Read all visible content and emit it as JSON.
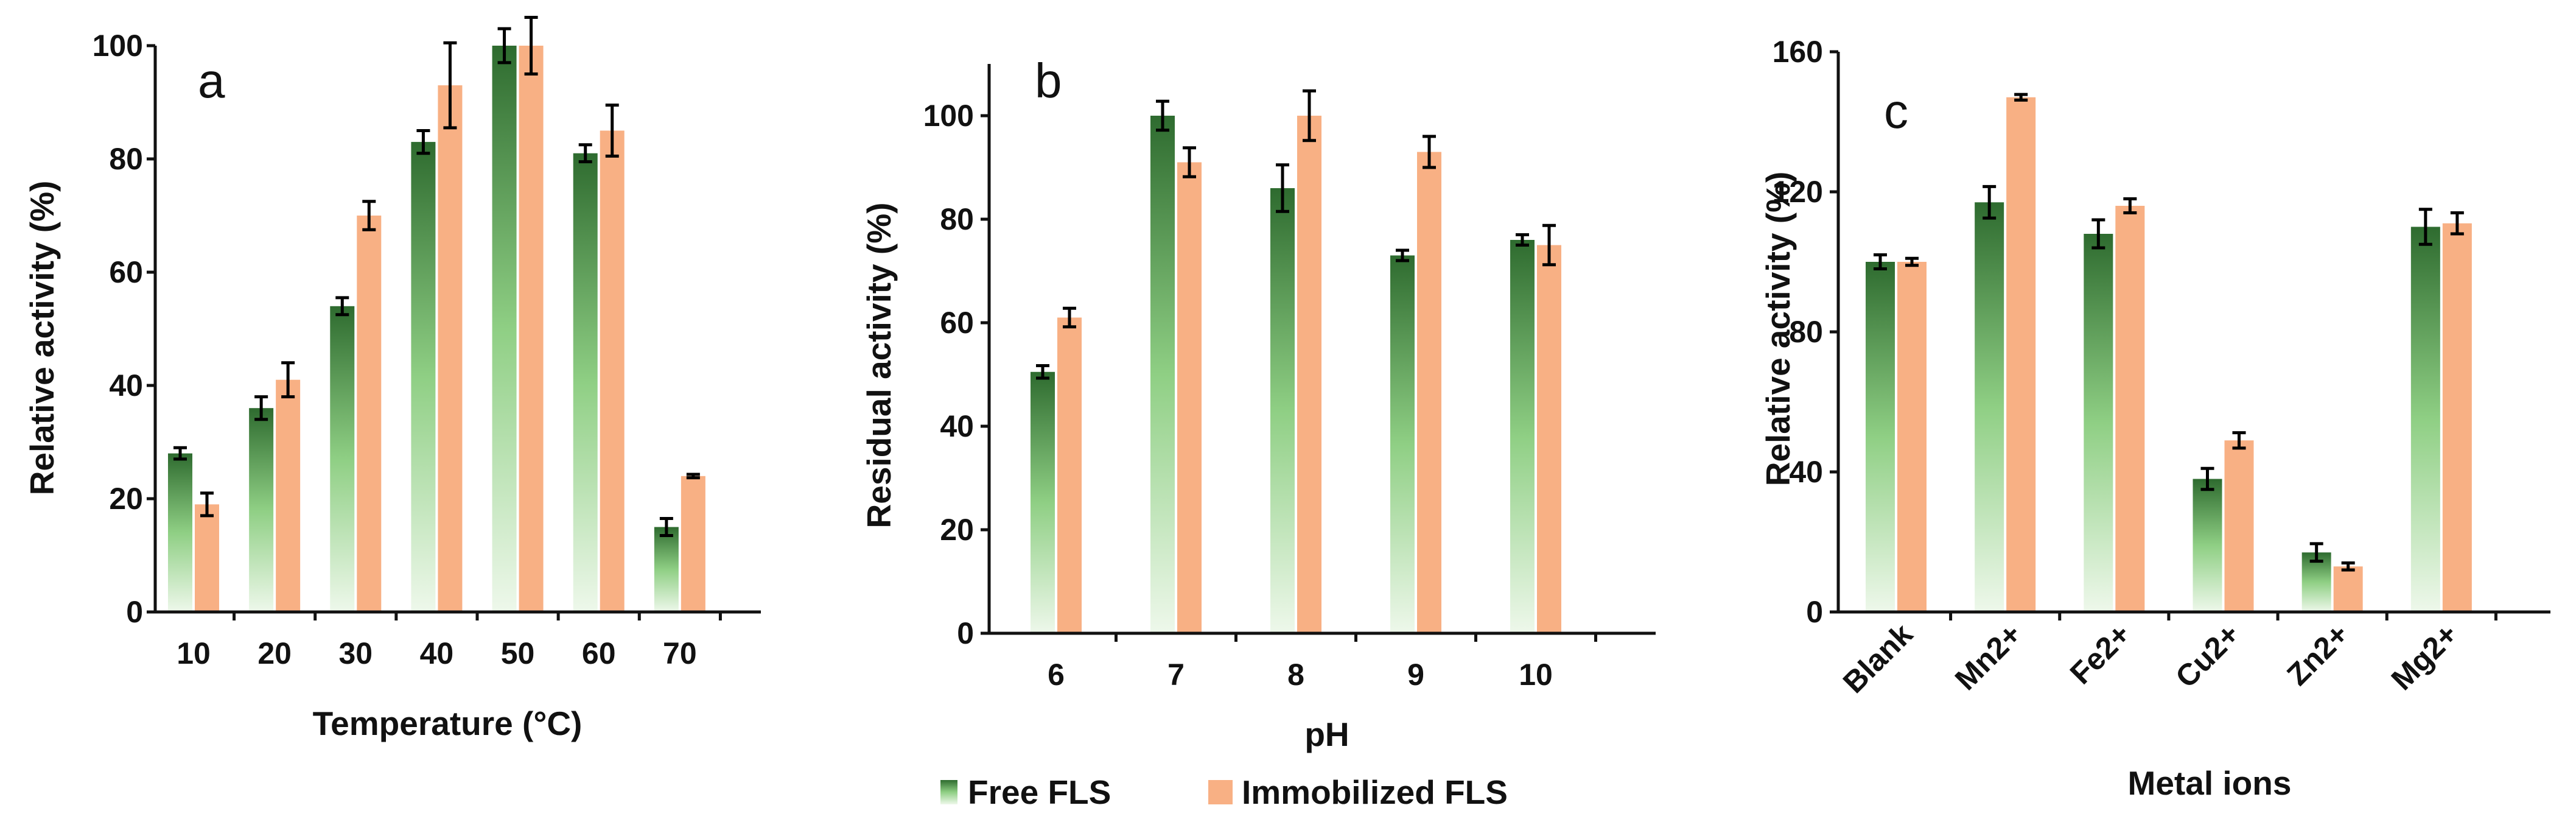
{
  "figure": {
    "legend": {
      "entries": [
        {
          "name": "Free FLS",
          "color": "#2e6b2f"
        },
        {
          "name": "Immobilized FLS",
          "color": "#f8b084"
        }
      ]
    }
  },
  "colors": {
    "free_top": "#2e6b2f",
    "free_bottom": "#e9f5e6",
    "immobilized": "#f8b084",
    "axis": "#111111"
  },
  "chart_data": [
    {
      "type": "bar",
      "panel_label": "a",
      "xlabel": "Temperature (°C)",
      "ylabel": "Relative activity (%)",
      "ylim": [
        0,
        100
      ],
      "yticks": [
        "0",
        "20",
        "40",
        "60",
        "80",
        "100"
      ],
      "categories": [
        "10",
        "20",
        "30",
        "40",
        "50",
        "60",
        "70"
      ],
      "series": [
        {
          "name": "Free FLS",
          "values": [
            28,
            36,
            54,
            83,
            100,
            81,
            15
          ],
          "errors": [
            1,
            2,
            1.5,
            2,
            3,
            1.5,
            1.5
          ]
        },
        {
          "name": "Immobilized FLS",
          "values": [
            19,
            41,
            70,
            93,
            100,
            85,
            24
          ],
          "errors": [
            2,
            3,
            2.5,
            7.5,
            5,
            4.5,
            0.3
          ]
        }
      ],
      "grid": false
    },
    {
      "type": "bar",
      "panel_label": "b",
      "xlabel": "pH",
      "ylabel": "Residual activity (%)",
      "ylim": [
        0,
        110
      ],
      "yticks": [
        "0",
        "20",
        "40",
        "60",
        "80",
        "100"
      ],
      "categories": [
        "6",
        "7",
        "8",
        "9",
        "10"
      ],
      "series": [
        {
          "name": "Free FLS",
          "values": [
            50.5,
            100,
            86,
            73,
            76
          ],
          "errors": [
            1.2,
            2.8,
            4.5,
            1,
            1
          ]
        },
        {
          "name": "Immobilized FLS",
          "values": [
            61,
            91,
            100,
            93,
            75
          ],
          "errors": [
            1.8,
            2.8,
            4.8,
            3,
            3.8
          ]
        }
      ],
      "grid": false
    },
    {
      "type": "bar",
      "panel_label": "c",
      "xlabel": "Metal ions",
      "ylabel": "Relative activity (%)",
      "ylim": [
        0,
        160
      ],
      "yticks": [
        "0",
        "40",
        "80",
        "120",
        "160"
      ],
      "categories": [
        "Blank",
        "Mn2+",
        "Fe2+",
        "Cu2+",
        "Zn2+",
        "Mg2+"
      ],
      "series": [
        {
          "name": "Free FLS",
          "values": [
            100,
            117,
            108,
            38,
            17,
            110
          ],
          "errors": [
            2,
            4.5,
            4,
            3,
            2.5,
            5
          ]
        },
        {
          "name": "Immobilized FLS",
          "values": [
            100,
            147,
            116,
            49,
            13,
            111
          ],
          "errors": [
            1,
            0.8,
            2,
            2.2,
            1,
            3
          ]
        }
      ],
      "grid": false
    }
  ]
}
